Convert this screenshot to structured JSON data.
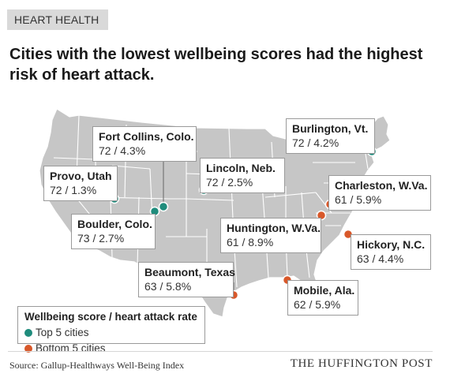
{
  "kicker": "HEART HEALTH",
  "headline": "Cities with the lowest wellbeing scores had the highest risk of heart attack.",
  "colors": {
    "top": "#1f8c7c",
    "bottom": "#d8582a",
    "land": "#c6c6c6",
    "border": "#ffffff"
  },
  "cities": [
    {
      "id": "fort-collins",
      "name": "Fort Collins, Colo.",
      "value": "72 / 4.3%",
      "group": "top"
    },
    {
      "id": "burlington",
      "name": "Burlington, Vt.",
      "value": "72 / 4.2%",
      "group": "top"
    },
    {
      "id": "provo",
      "name": "Provo, Utah",
      "value": "72 / 1.3%",
      "group": "top"
    },
    {
      "id": "lincoln",
      "name": "Lincoln, Neb.",
      "value": "72 / 2.5%",
      "group": "top"
    },
    {
      "id": "boulder",
      "name": "Boulder, Colo.",
      "value": "73 / 2.7%",
      "group": "top"
    },
    {
      "id": "charleston",
      "name": "Charleston, W.Va.",
      "value": "61 / 5.9%",
      "group": "bottom"
    },
    {
      "id": "huntington",
      "name": "Huntington, W.Va.",
      "value": "61 / 8.9%",
      "group": "bottom"
    },
    {
      "id": "hickory",
      "name": "Hickory, N.C.",
      "value": "63 / 4.4%",
      "group": "bottom"
    },
    {
      "id": "beaumont",
      "name": "Beaumont, Texas",
      "value": "63 / 5.8%",
      "group": "bottom"
    },
    {
      "id": "mobile",
      "name": "Mobile, Ala.",
      "value": "62 / 5.9%",
      "group": "bottom"
    }
  ],
  "legend": {
    "title": "Wellbeing score / heart attack rate",
    "top_label": "Top 5 cities",
    "bottom_label": "Bottom 5 cities"
  },
  "source": "Source: Gallup-Healthways Well-Being Index",
  "brand": "THE HUFFINGTON POST"
}
